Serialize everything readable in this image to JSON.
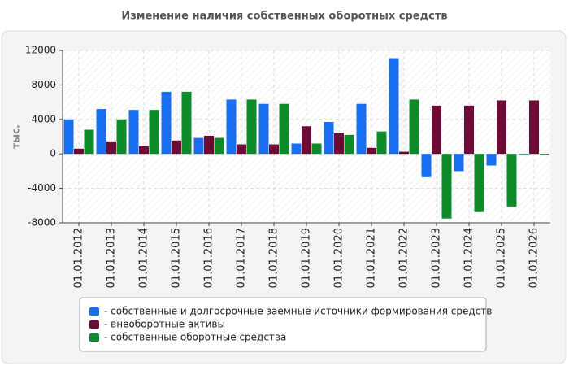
{
  "chart_data": {
    "type": "bar",
    "title": "Изменение наличия собственных оборотных средств",
    "y_label": "тыс.",
    "categories": [
      "01.01.2012",
      "01.01.2013",
      "01.01.2014",
      "01.01.2015",
      "01.01.2016",
      "01.01.2017",
      "01.01.2018",
      "01.01.2019",
      "01.01.2020",
      "01.01.2021",
      "01.01.2022",
      "01.01.2023",
      "01.01.2024",
      "01.01.2025",
      "01.01.2026"
    ],
    "series": [
      {
        "name": "- собственные и долгосрочные заемные источники формирования средств",
        "color": "#1a6ff0",
        "values": [
          4000,
          5200,
          5100,
          7200,
          1850,
          6300,
          5800,
          1200,
          3700,
          5800,
          11100,
          -2700,
          -2000,
          -1350,
          -100
        ]
      },
      {
        "name": "- внеоборотные активы",
        "color": "#6e0a36",
        "values": [
          600,
          1450,
          900,
          1550,
          2100,
          1100,
          1100,
          3200,
          2400,
          700,
          250,
          5600,
          5600,
          6200,
          6200
        ]
      },
      {
        "name": "- собственные оборотные средства",
        "color": "#0d8a2b",
        "values": [
          2800,
          4000,
          5100,
          7200,
          1850,
          6300,
          5800,
          1200,
          2200,
          2600,
          6300,
          -7500,
          -6750,
          -6100,
          -100
        ]
      }
    ],
    "ylim": [
      -8000,
      12000
    ],
    "yticks": [
      -8000,
      -4000,
      0,
      4000,
      8000,
      12000
    ],
    "grid": true,
    "legend_position": "bottom"
  }
}
